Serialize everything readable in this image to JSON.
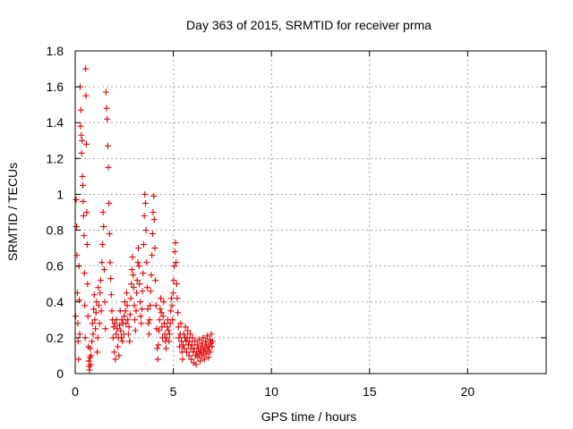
{
  "chart_data": {
    "type": "scatter",
    "title": "Day 363 of 2015, SRMTID for receiver prma",
    "xlabel": "GPS time / hours",
    "ylabel": "SRMTID / TECUs",
    "xlim": [
      0,
      24
    ],
    "ylim": [
      0,
      1.8
    ],
    "xticks": [
      0,
      5,
      10,
      15,
      20
    ],
    "xtick_labels": [
      "0",
      "5",
      "10",
      "15",
      "20"
    ],
    "yticks": [
      0,
      0.2,
      0.4,
      0.6,
      0.8,
      1,
      1.2,
      1.4,
      1.6,
      1.8
    ],
    "ytick_labels": [
      "0",
      "0.2",
      "0.4",
      "0.6",
      "0.8",
      "1",
      "1.2",
      "1.4",
      "1.6",
      "1.8"
    ],
    "grid": true,
    "marker": "+",
    "marker_color": "#e00000",
    "series": [
      {
        "name": "SRMTID",
        "points": [
          [
            0.02,
            0.32
          ],
          [
            0.05,
            0.97
          ],
          [
            0.07,
            0.82
          ],
          [
            0.09,
            0.66
          ],
          [
            0.11,
            0.45
          ],
          [
            0.13,
            0.28
          ],
          [
            0.15,
            0.18
          ],
          [
            0.17,
            0.08
          ],
          [
            0.19,
            0.6
          ],
          [
            0.21,
            0.41
          ],
          [
            0.23,
            0.22
          ],
          [
            0.25,
            1.6
          ],
          [
            0.27,
            1.38
          ],
          [
            0.29,
            1.47
          ],
          [
            0.31,
            1.33
          ],
          [
            0.33,
            1.23
          ],
          [
            0.35,
            1.3
          ],
          [
            0.37,
            1.1
          ],
          [
            0.39,
            1.05
          ],
          [
            0.41,
            0.96
          ],
          [
            0.43,
            0.88
          ],
          [
            0.45,
            0.77
          ],
          [
            0.47,
            0.56
          ],
          [
            0.49,
            0.38
          ],
          [
            0.51,
            0.2
          ],
          [
            0.53,
            1.7
          ],
          [
            0.55,
            1.55
          ],
          [
            0.57,
            1.28
          ],
          [
            0.59,
            0.9
          ],
          [
            0.61,
            0.72
          ],
          [
            0.63,
            0.5
          ],
          [
            0.65,
            0.32
          ],
          [
            0.67,
            0.15
          ],
          [
            0.69,
            0.07
          ],
          [
            0.71,
            0.04
          ],
          [
            0.73,
            0.02
          ],
          [
            0.75,
            0.09
          ],
          [
            0.77,
            0.14
          ],
          [
            0.79,
            0.05
          ],
          [
            0.81,
            0.1
          ],
          [
            0.85,
            0.18
          ],
          [
            0.88,
            0.28
          ],
          [
            0.91,
            0.22
          ],
          [
            0.94,
            0.36
          ],
          [
            0.97,
            0.44
          ],
          [
            1.0,
            0.3
          ],
          [
            1.03,
            0.25
          ],
          [
            1.06,
            0.34
          ],
          [
            1.09,
            0.4
          ],
          [
            1.12,
            0.12
          ],
          [
            1.15,
            0.2
          ],
          [
            1.18,
            0.48
          ],
          [
            1.21,
            0.38
          ],
          [
            1.24,
            0.28
          ],
          [
            1.27,
            0.45
          ],
          [
            1.3,
            0.52
          ],
          [
            1.33,
            0.35
          ],
          [
            1.36,
            0.62
          ],
          [
            1.39,
            0.72
          ],
          [
            1.42,
            0.9
          ],
          [
            1.45,
            0.82
          ],
          [
            1.48,
            0.58
          ],
          [
            1.51,
            0.4
          ],
          [
            1.54,
            0.25
          ],
          [
            1.57,
            1.57
          ],
          [
            1.6,
            1.48
          ],
          [
            1.63,
            1.42
          ],
          [
            1.66,
            1.27
          ],
          [
            1.69,
            1.15
          ],
          [
            1.72,
            0.95
          ],
          [
            1.75,
            0.78
          ],
          [
            1.78,
            0.62
          ],
          [
            1.81,
            0.53
          ],
          [
            1.84,
            0.44
          ],
          [
            1.87,
            0.35
          ],
          [
            1.9,
            0.3
          ],
          [
            1.93,
            0.2
          ],
          [
            1.96,
            0.26
          ],
          [
            1.99,
            0.12
          ],
          [
            2.02,
            0.28
          ],
          [
            2.05,
            0.08
          ],
          [
            2.08,
            0.22
          ],
          [
            2.11,
            0.3
          ],
          [
            2.14,
            0.25
          ],
          [
            2.17,
            0.15
          ],
          [
            2.2,
            0.2
          ],
          [
            2.23,
            0.1
          ],
          [
            2.26,
            0.27
          ],
          [
            2.29,
            0.35
          ],
          [
            2.32,
            0.24
          ],
          [
            2.35,
            0.2
          ],
          [
            2.38,
            0.3
          ],
          [
            2.41,
            0.18
          ],
          [
            2.44,
            0.28
          ],
          [
            2.47,
            0.22
          ],
          [
            2.5,
            0.32
          ],
          [
            2.53,
            0.4
          ],
          [
            2.56,
            0.35
          ],
          [
            2.59,
            0.28
          ],
          [
            2.62,
            0.45
          ],
          [
            2.65,
            0.38
          ],
          [
            2.68,
            0.3
          ],
          [
            2.71,
            0.22
          ],
          [
            2.74,
            0.26
          ],
          [
            2.77,
            0.18
          ],
          [
            2.8,
            0.33
          ],
          [
            2.83,
            0.42
          ],
          [
            2.86,
            0.5
          ],
          [
            2.89,
            0.58
          ],
          [
            2.92,
            0.65
          ],
          [
            2.95,
            0.55
          ],
          [
            2.98,
            0.48
          ],
          [
            3.01,
            0.38
          ],
          [
            3.04,
            0.3
          ],
          [
            3.07,
            0.24
          ],
          [
            3.1,
            0.35
          ],
          [
            3.13,
            0.45
          ],
          [
            3.16,
            0.52
          ],
          [
            3.19,
            0.62
          ],
          [
            3.22,
            0.7
          ],
          [
            3.25,
            0.6
          ],
          [
            3.28,
            0.5
          ],
          [
            3.31,
            0.4
          ],
          [
            3.34,
            0.32
          ],
          [
            3.37,
            0.28
          ],
          [
            3.4,
            0.36
          ],
          [
            3.43,
            0.46
          ],
          [
            3.46,
            0.56
          ],
          [
            3.49,
            0.72
          ],
          [
            3.52,
            0.88
          ],
          [
            3.55,
            1.0
          ],
          [
            3.58,
            0.95
          ],
          [
            3.61,
            0.8
          ],
          [
            3.64,
            0.62
          ],
          [
            3.67,
            0.48
          ],
          [
            3.7,
            0.36
          ],
          [
            3.73,
            0.28
          ],
          [
            3.76,
            0.22
          ],
          [
            3.79,
            0.3
          ],
          [
            3.82,
            0.38
          ],
          [
            3.85,
            0.46
          ],
          [
            3.88,
            0.55
          ],
          [
            3.91,
            0.66
          ],
          [
            3.94,
            0.78
          ],
          [
            3.97,
            0.9
          ],
          [
            4.0,
            0.99
          ],
          [
            4.03,
            0.86
          ],
          [
            4.06,
            0.7
          ],
          [
            4.09,
            0.52
          ],
          [
            4.12,
            0.38
          ],
          [
            4.15,
            0.25
          ],
          [
            4.18,
            0.14
          ],
          [
            4.21,
            0.08
          ],
          [
            4.24,
            0.16
          ],
          [
            4.27,
            0.24
          ],
          [
            4.3,
            0.3
          ],
          [
            4.33,
            0.36
          ],
          [
            4.36,
            0.42
          ],
          [
            4.39,
            0.34
          ],
          [
            4.42,
            0.26
          ],
          [
            4.45,
            0.2
          ],
          [
            4.48,
            0.32
          ],
          [
            4.51,
            0.4
          ],
          [
            4.54,
            0.28
          ],
          [
            4.57,
            0.22
          ],
          [
            4.6,
            0.18
          ],
          [
            4.63,
            0.14
          ],
          [
            4.66,
            0.2
          ],
          [
            4.69,
            0.26
          ],
          [
            4.72,
            0.3
          ],
          [
            4.75,
            0.24
          ],
          [
            4.78,
            0.18
          ],
          [
            4.81,
            0.22
          ],
          [
            4.84,
            0.28
          ],
          [
            4.87,
            0.35
          ],
          [
            4.9,
            0.42
          ],
          [
            4.93,
            0.38
          ],
          [
            4.96,
            0.3
          ],
          [
            4.99,
            0.45
          ],
          [
            5.02,
            0.52
          ],
          [
            5.05,
            0.6
          ],
          [
            5.08,
            0.68
          ],
          [
            5.11,
            0.73
          ],
          [
            5.14,
            0.62
          ],
          [
            5.17,
            0.5
          ],
          [
            5.2,
            0.42
          ],
          [
            5.23,
            0.34
          ],
          [
            5.26,
            0.26
          ],
          [
            5.29,
            0.2
          ],
          [
            5.32,
            0.15
          ],
          [
            5.35,
            0.22
          ],
          [
            5.38,
            0.28
          ],
          [
            5.41,
            0.18
          ],
          [
            5.44,
            0.12
          ],
          [
            5.47,
            0.08
          ],
          [
            5.5,
            0.16
          ],
          [
            5.53,
            0.22
          ],
          [
            5.56,
            0.14
          ],
          [
            5.59,
            0.2
          ],
          [
            5.62,
            0.26
          ],
          [
            5.65,
            0.18
          ],
          [
            5.68,
            0.12
          ],
          [
            5.71,
            0.2
          ],
          [
            5.74,
            0.24
          ],
          [
            5.77,
            0.16
          ],
          [
            5.8,
            0.1
          ],
          [
            5.83,
            0.18
          ],
          [
            5.86,
            0.22
          ],
          [
            5.89,
            0.14
          ],
          [
            5.92,
            0.08
          ],
          [
            5.95,
            0.16
          ],
          [
            5.98,
            0.2
          ],
          [
            6.01,
            0.12
          ],
          [
            6.04,
            0.06
          ],
          [
            6.07,
            0.14
          ],
          [
            6.1,
            0.18
          ],
          [
            6.13,
            0.1
          ],
          [
            6.16,
            0.05
          ],
          [
            6.19,
            0.12
          ],
          [
            6.22,
            0.16
          ],
          [
            6.25,
            0.09
          ],
          [
            6.28,
            0.14
          ],
          [
            6.31,
            0.19
          ],
          [
            6.34,
            0.11
          ],
          [
            6.37,
            0.07
          ],
          [
            6.4,
            0.13
          ],
          [
            6.43,
            0.17
          ],
          [
            6.46,
            0.1
          ],
          [
            6.49,
            0.15
          ],
          [
            6.52,
            0.2
          ],
          [
            6.55,
            0.12
          ],
          [
            6.58,
            0.08
          ],
          [
            6.61,
            0.14
          ],
          [
            6.64,
            0.18
          ],
          [
            6.67,
            0.11
          ],
          [
            6.7,
            0.16
          ],
          [
            6.73,
            0.21
          ],
          [
            6.76,
            0.13
          ],
          [
            6.79,
            0.09
          ],
          [
            6.82,
            0.15
          ],
          [
            6.85,
            0.19
          ],
          [
            6.88,
            0.12
          ],
          [
            6.91,
            0.17
          ],
          [
            6.94,
            0.22
          ],
          [
            6.97,
            0.15
          ],
          [
            7.0,
            0.18
          ]
        ]
      }
    ]
  }
}
